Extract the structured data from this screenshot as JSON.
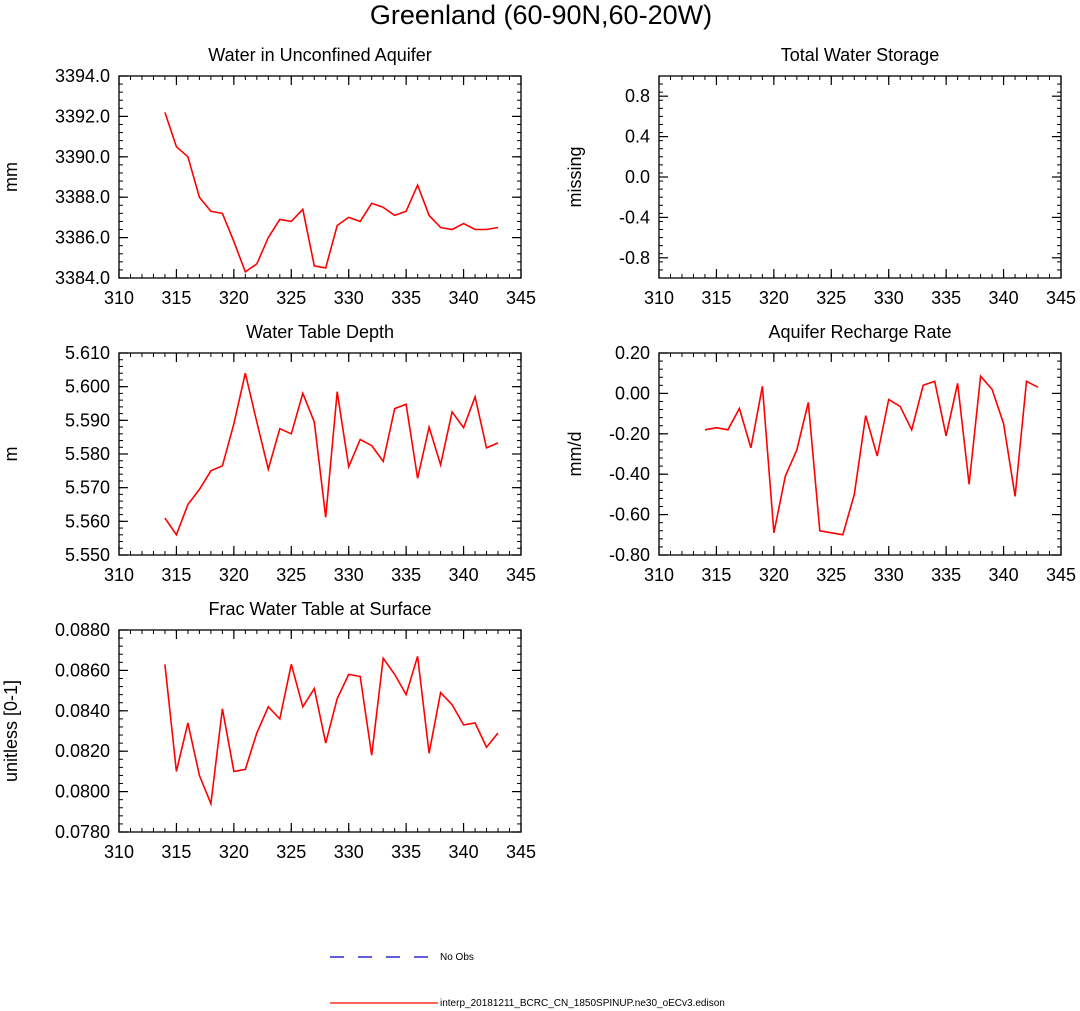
{
  "title": "Greenland (60-90N,60-20W)",
  "colors": {
    "model": "#ff0000",
    "obs": "#0000cc",
    "frame": "#000000"
  },
  "legend": [
    {
      "label": "No Obs",
      "style": "dashed",
      "color": "#0000cc"
    },
    {
      "label": "interp_20181211_BCRC_CN_1850SPINUP.ne30_oECv3.edison",
      "style": "solid",
      "color": "#ff0000"
    }
  ],
  "chart_data": [
    {
      "type": "line",
      "title": "Water in Unconfined Aquifer",
      "ylabel": "mm",
      "xlim": [
        310,
        345
      ],
      "ylim": [
        3384.0,
        3394.0
      ],
      "xticks": [
        310,
        315,
        320,
        325,
        330,
        335,
        340,
        345
      ],
      "xtick_labels": [
        "310",
        "315",
        "320",
        "325",
        "330",
        "335",
        "340",
        "345"
      ],
      "yticks": [
        3384,
        3386,
        3388,
        3390,
        3392,
        3394
      ],
      "ytick_labels": [
        "3384.0",
        "3386.0",
        "3388.0",
        "3390.0",
        "3392.0",
        "3394.0"
      ],
      "series": [
        {
          "x": [
            314,
            315,
            316,
            317,
            318,
            319,
            320,
            321,
            322,
            323,
            324,
            325,
            326,
            327,
            328,
            329,
            330,
            331,
            332,
            333,
            334,
            335,
            336,
            337,
            338,
            339,
            340,
            341,
            342,
            343
          ],
          "y": [
            3392.2,
            3390.5,
            3390.0,
            3388.0,
            3387.3,
            3387.2,
            3385.8,
            3384.3,
            3384.7,
            3386.0,
            3386.9,
            3386.8,
            3387.4,
            3384.6,
            3384.5,
            3386.6,
            3387.0,
            3386.8,
            3387.7,
            3387.5,
            3387.1,
            3387.3,
            3388.6,
            3387.1,
            3386.5,
            3386.4,
            3386.7,
            3386.4,
            3386.4,
            3386.5
          ]
        }
      ]
    },
    {
      "type": "line",
      "title": "Total Water Storage",
      "ylabel": "missing",
      "xlim": [
        310,
        345
      ],
      "ylim": [
        -1.0,
        1.0
      ],
      "xticks": [
        310,
        315,
        320,
        325,
        330,
        335,
        340,
        345
      ],
      "xtick_labels": [
        "310",
        "315",
        "320",
        "325",
        "330",
        "335",
        "340",
        "345"
      ],
      "yticks": [
        -0.8,
        -0.4,
        0.0,
        0.4,
        0.8
      ],
      "ytick_labels": [
        "-0.8",
        "-0.4",
        "0.0",
        "0.4",
        "0.8"
      ],
      "series": []
    },
    {
      "type": "line",
      "title": "Water Table Depth",
      "ylabel": "m",
      "xlim": [
        310,
        345
      ],
      "ylim": [
        5.55,
        5.61
      ],
      "xticks": [
        310,
        315,
        320,
        325,
        330,
        335,
        340,
        345
      ],
      "xtick_labels": [
        "310",
        "315",
        "320",
        "325",
        "330",
        "335",
        "340",
        "345"
      ],
      "yticks": [
        5.55,
        5.56,
        5.57,
        5.58,
        5.59,
        5.6,
        5.61
      ],
      "ytick_labels": [
        "5.550",
        "5.560",
        "5.570",
        "5.580",
        "5.590",
        "5.600",
        "5.610"
      ],
      "series": [
        {
          "x": [
            314,
            315,
            316,
            317,
            318,
            319,
            320,
            321,
            322,
            323,
            324,
            325,
            326,
            327,
            328,
            329,
            330,
            331,
            332,
            333,
            334,
            335,
            336,
            337,
            338,
            339,
            340,
            341,
            342,
            343
          ],
          "y": [
            5.561,
            5.556,
            5.565,
            5.5695,
            5.575,
            5.5765,
            5.589,
            5.604,
            5.5895,
            5.5755,
            5.5875,
            5.586,
            5.598,
            5.5895,
            5.5612,
            5.5985,
            5.5762,
            5.5843,
            5.5825,
            5.5778,
            5.5935,
            5.5948,
            5.5728,
            5.588,
            5.5768,
            5.5925,
            5.5878,
            5.597,
            5.5818,
            5.5833
          ]
        }
      ]
    },
    {
      "type": "line",
      "title": "Aquifer Recharge Rate",
      "ylabel": "mm/d",
      "xlim": [
        310,
        345
      ],
      "ylim": [
        -0.8,
        0.2
      ],
      "xticks": [
        310,
        315,
        320,
        325,
        330,
        335,
        340,
        345
      ],
      "xtick_labels": [
        "310",
        "315",
        "320",
        "325",
        "330",
        "335",
        "340",
        "345"
      ],
      "yticks": [
        -0.8,
        -0.6,
        -0.4,
        -0.2,
        0.0,
        0.2
      ],
      "ytick_labels": [
        "-0.80",
        "-0.60",
        "-0.40",
        "-0.20",
        "0.00",
        "0.20"
      ],
      "series": [
        {
          "x": [
            314,
            315,
            316,
            317,
            318,
            319,
            320,
            321,
            322,
            323,
            324,
            325,
            326,
            327,
            328,
            329,
            330,
            331,
            332,
            333,
            334,
            335,
            336,
            337,
            338,
            339,
            340,
            341,
            342,
            343
          ],
          "y": [
            -0.18,
            -0.17,
            -0.18,
            -0.075,
            -0.27,
            0.035,
            -0.69,
            -0.41,
            -0.28,
            -0.045,
            -0.68,
            -0.69,
            -0.7,
            -0.5,
            -0.11,
            -0.31,
            -0.03,
            -0.065,
            -0.18,
            0.04,
            0.06,
            -0.21,
            0.05,
            -0.45,
            0.085,
            0.02,
            -0.15,
            -0.51,
            0.06,
            0.03
          ]
        }
      ]
    },
    {
      "type": "line",
      "title": "Frac Water Table at Surface",
      "ylabel": "unitless [0-1]",
      "xlim": [
        310,
        345
      ],
      "ylim": [
        0.078,
        0.088
      ],
      "xticks": [
        310,
        315,
        320,
        325,
        330,
        335,
        340,
        345
      ],
      "xtick_labels": [
        "310",
        "315",
        "320",
        "325",
        "330",
        "335",
        "340",
        "345"
      ],
      "yticks": [
        0.078,
        0.08,
        0.082,
        0.084,
        0.086,
        0.088
      ],
      "ytick_labels": [
        "0.0780",
        "0.0800",
        "0.0820",
        "0.0840",
        "0.0860",
        "0.0880"
      ],
      "series": [
        {
          "x": [
            314,
            315,
            316,
            317,
            318,
            319,
            320,
            321,
            322,
            323,
            324,
            325,
            326,
            327,
            328,
            329,
            330,
            331,
            332,
            333,
            334,
            335,
            336,
            337,
            338,
            339,
            340,
            341,
            342,
            343
          ],
          "y": [
            0.0863,
            0.081,
            0.0834,
            0.0808,
            0.0794,
            0.0841,
            0.081,
            0.0811,
            0.0829,
            0.0842,
            0.0836,
            0.0863,
            0.0842,
            0.0851,
            0.0824,
            0.0846,
            0.0858,
            0.0857,
            0.0818,
            0.0866,
            0.0858,
            0.0848,
            0.0867,
            0.0819,
            0.0849,
            0.0843,
            0.0833,
            0.0834,
            0.0822,
            0.0829
          ]
        }
      ]
    }
  ]
}
